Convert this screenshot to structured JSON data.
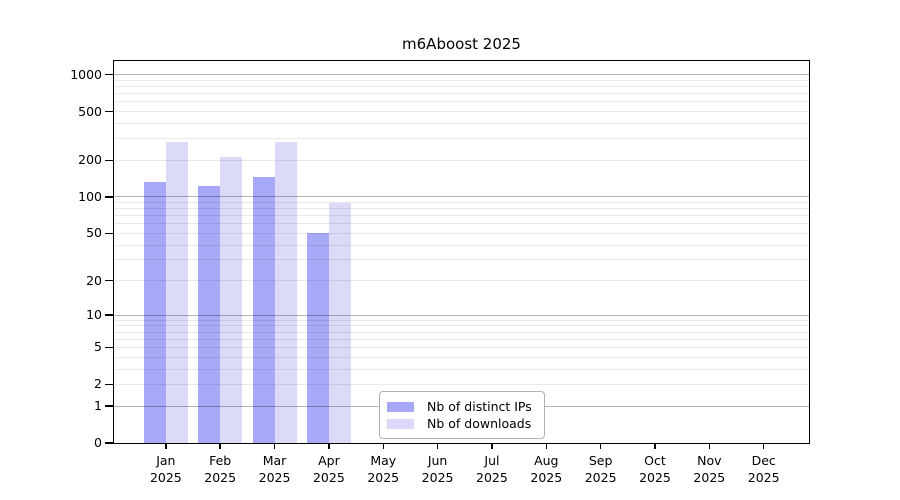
{
  "title": "m6Aboost 2025",
  "chart_data": {
    "type": "bar",
    "title": "m6Aboost 2025",
    "yscale": "log2(1+y)",
    "grid": true,
    "legend_position": "bottom-center-inside",
    "categories": [
      "Jan 2025",
      "Feb 2025",
      "Mar 2025",
      "Apr 2025",
      "May 2025",
      "Jun 2025",
      "Jul 2025",
      "Aug 2025",
      "Sep 2025",
      "Oct 2025",
      "Nov 2025",
      "Dec 2025"
    ],
    "series": [
      {
        "name": "Nb of distinct IPs",
        "color": "#a8a8f8",
        "values": [
          132,
          122,
          146,
          50,
          null,
          null,
          null,
          null,
          null,
          null,
          null,
          null
        ]
      },
      {
        "name": "Nb of downloads",
        "color": "#dbdbf9",
        "values": [
          280,
          214,
          280,
          90,
          null,
          null,
          null,
          null,
          null,
          null,
          null,
          null
        ]
      }
    ],
    "yticks": [
      0,
      1,
      2,
      5,
      10,
      20,
      50,
      100,
      200,
      500,
      1000
    ],
    "ylim": [
      0,
      1292
    ],
    "axis_color": "#000000"
  }
}
